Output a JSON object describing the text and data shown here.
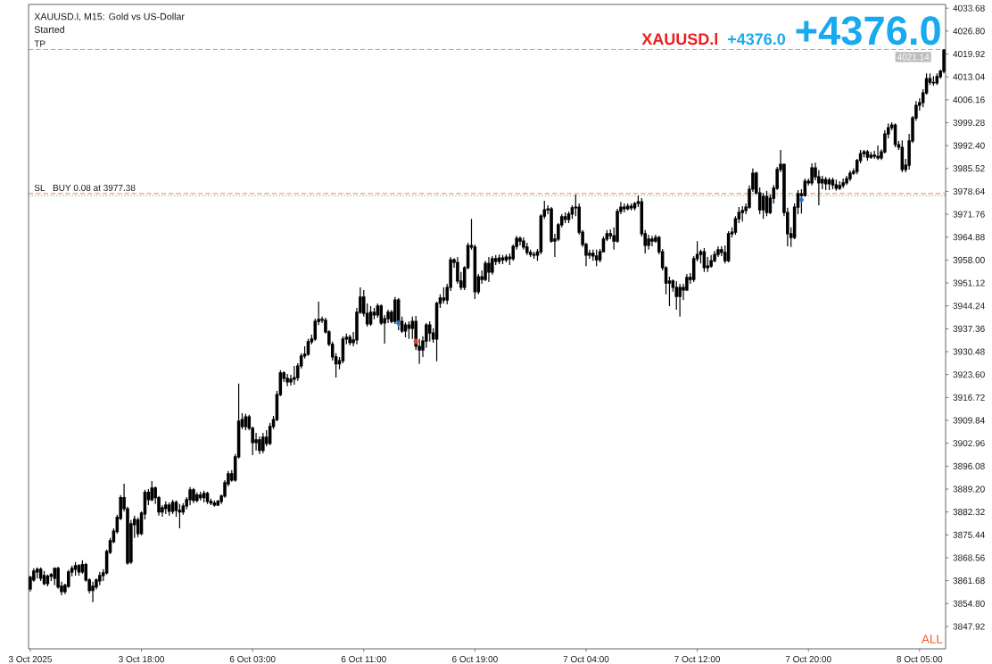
{
  "chart_data": {
    "type": "candlestick",
    "title": "XAUUSD.l, M15: Gold vs US-Dollar",
    "color": "#000000",
    "categories": [
      "3 Oct 2025",
      null,
      null,
      null,
      null,
      null,
      null,
      null,
      null,
      null,
      null,
      null,
      null,
      null,
      null,
      null,
      null,
      null,
      null,
      null,
      null,
      null,
      null,
      null,
      null,
      null,
      null,
      null,
      null,
      null,
      null,
      null,
      "3 Oct 18:00",
      null,
      null,
      null,
      null,
      null,
      null,
      null,
      null,
      null,
      null,
      null,
      null,
      null,
      null,
      null,
      null,
      null,
      null,
      null,
      null,
      null,
      null,
      null,
      null,
      null,
      null,
      null,
      null,
      null,
      null,
      null,
      "6 Oct 03:00",
      null,
      null,
      null,
      null,
      null,
      null,
      null,
      null,
      null,
      null,
      null,
      null,
      null,
      null,
      null,
      null,
      null,
      null,
      null,
      null,
      null,
      null,
      null,
      null,
      null,
      null,
      null,
      null,
      null,
      null,
      null,
      "6 Oct 11:00",
      null,
      null,
      null,
      null,
      null,
      null,
      null,
      null,
      null,
      null,
      null,
      null,
      null,
      null,
      null,
      null,
      null,
      null,
      null,
      null,
      null,
      null,
      null,
      null,
      null,
      null,
      null,
      null,
      null,
      null,
      null,
      "6 Oct 19:00",
      null,
      null,
      null,
      null,
      null,
      null,
      null,
      null,
      null,
      null,
      null,
      null,
      null,
      null,
      null,
      null,
      null,
      null,
      null,
      null,
      null,
      null,
      null,
      null,
      null,
      null,
      null,
      null,
      null,
      null,
      null,
      "7 Oct 04:00",
      null,
      null,
      null,
      null,
      null,
      null,
      null,
      null,
      null,
      null,
      null,
      null,
      null,
      null,
      null,
      null,
      null,
      null,
      null,
      null,
      null,
      null,
      null,
      null,
      null,
      null,
      null,
      null,
      null,
      null,
      null,
      "7 Oct 12:00",
      null,
      null,
      null,
      null,
      null,
      null,
      null,
      null,
      null,
      null,
      null,
      null,
      null,
      null,
      null,
      null,
      null,
      null,
      null,
      null,
      null,
      null,
      null,
      null,
      null,
      null,
      null,
      null,
      null,
      null,
      null,
      "7 Oct 20:00",
      null,
      null,
      null,
      null,
      null,
      null,
      null,
      null,
      null,
      null,
      null,
      null,
      null,
      null,
      null,
      null,
      null,
      null,
      null,
      null,
      null,
      null,
      null,
      null,
      null,
      null,
      null,
      null,
      null,
      null,
      null,
      "8 Oct 05:00",
      null,
      null,
      null,
      null,
      null,
      null,
      null
    ],
    "ohlc": [
      [
        3859.2,
        3863.2,
        3858.4,
        3862.7
      ],
      [
        3861.9,
        3865.4,
        3861.4,
        3864.6
      ],
      [
        3864.3,
        3865.7,
        3862.4,
        3865.1
      ],
      [
        3865.1,
        3865.7,
        3861.6,
        3862.4
      ],
      [
        3863.2,
        3864.6,
        3860.3,
        3860.8
      ],
      [
        3860.8,
        3863.5,
        3860.0,
        3863.0
      ],
      [
        3863.0,
        3864.0,
        3861.6,
        3863.5
      ],
      [
        3862.4,
        3865.7,
        3860.3,
        3865.4
      ],
      [
        3865.4,
        3865.9,
        3859.2,
        3859.8
      ],
      [
        3860.0,
        3861.4,
        3857.3,
        3858.4
      ],
      [
        3858.4,
        3860.8,
        3857.6,
        3860.3
      ],
      [
        3860.0,
        3864.9,
        3859.5,
        3864.3
      ],
      [
        3864.3,
        3866.2,
        3863.0,
        3865.4
      ],
      [
        3865.1,
        3867.3,
        3863.2,
        3866.2
      ],
      [
        3866.2,
        3866.7,
        3863.2,
        3864.3
      ],
      [
        3864.3,
        3867.8,
        3863.8,
        3866.5
      ],
      [
        3866.5,
        3867.0,
        3861.4,
        3861.9
      ],
      [
        3861.9,
        3862.4,
        3857.9,
        3858.7
      ],
      [
        3858.7,
        3861.4,
        3855.2,
        3860.0
      ],
      [
        3859.8,
        3862.4,
        3859.0,
        3861.9
      ],
      [
        3861.6,
        3864.3,
        3860.3,
        3863.2
      ],
      [
        3863.2,
        3865.1,
        3861.6,
        3864.0
      ],
      [
        3864.0,
        3871.0,
        3863.5,
        3870.5
      ],
      [
        3870.2,
        3874.5,
        3869.7,
        3873.7
      ],
      [
        3873.4,
        3877.4,
        3872.9,
        3876.6
      ],
      [
        3876.4,
        3881.5,
        3875.8,
        3880.7
      ],
      [
        3880.4,
        3887.4,
        3879.9,
        3886.6
      ],
      [
        3886.6,
        3890.8,
        3882.5,
        3883.3
      ],
      [
        3883.3,
        3883.9,
        3866.5,
        3867.0
      ],
      [
        3867.3,
        3879.9,
        3866.7,
        3878.8
      ],
      [
        3878.5,
        3881.2,
        3874.5,
        3880.1
      ],
      [
        3879.9,
        3880.7,
        3874.8,
        3875.8
      ],
      [
        3875.8,
        3882.5,
        3875.3,
        3882.0
      ],
      [
        3881.7,
        3889.0,
        3880.1,
        3888.2
      ],
      [
        3888.2,
        3889.2,
        3884.4,
        3886.0
      ],
      [
        3886.0,
        3891.6,
        3885.5,
        3889.5
      ],
      [
        3889.5,
        3890.0,
        3884.7,
        3886.6
      ],
      [
        3886.6,
        3887.1,
        3881.2,
        3882.3
      ],
      [
        3882.3,
        3884.4,
        3880.9,
        3883.6
      ],
      [
        3883.3,
        3885.5,
        3881.7,
        3884.4
      ],
      [
        3884.4,
        3885.2,
        3881.2,
        3882.5
      ],
      [
        3882.5,
        3886.0,
        3881.7,
        3885.2
      ],
      [
        3885.2,
        3885.8,
        3880.9,
        3882.8
      ],
      [
        3882.8,
        3884.7,
        3877.4,
        3882.3
      ],
      [
        3882.3,
        3885.0,
        3881.5,
        3884.1
      ],
      [
        3884.1,
        3886.8,
        3883.1,
        3886.0
      ],
      [
        3886.0,
        3889.8,
        3884.4,
        3889.0
      ],
      [
        3889.0,
        3889.5,
        3885.0,
        3885.8
      ],
      [
        3885.8,
        3888.2,
        3885.2,
        3887.4
      ],
      [
        3887.4,
        3888.4,
        3885.8,
        3886.6
      ],
      [
        3886.6,
        3888.7,
        3885.2,
        3887.9
      ],
      [
        3887.9,
        3888.4,
        3884.7,
        3885.5
      ],
      [
        3885.5,
        3886.3,
        3884.4,
        3885.0
      ],
      [
        3885.0,
        3885.8,
        3883.9,
        3884.4
      ],
      [
        3884.4,
        3886.0,
        3884.1,
        3885.5
      ],
      [
        3885.5,
        3887.6,
        3884.7,
        3887.1
      ],
      [
        3887.1,
        3891.9,
        3886.6,
        3891.1
      ],
      [
        3890.8,
        3894.6,
        3890.0,
        3893.8
      ],
      [
        3893.8,
        3894.9,
        3891.4,
        3891.9
      ],
      [
        3891.9,
        3899.7,
        3891.4,
        3898.9
      ],
      [
        3898.9,
        3920.9,
        3898.4,
        3909.6
      ],
      [
        3910.1,
        3912.0,
        3907.2,
        3908.0
      ],
      [
        3908.0,
        3911.8,
        3906.9,
        3910.9
      ],
      [
        3910.9,
        3911.5,
        3906.9,
        3907.5
      ],
      [
        3907.5,
        3908.0,
        3899.4,
        3903.2
      ],
      [
        3903.2,
        3906.1,
        3900.8,
        3904.0
      ],
      [
        3904.0,
        3905.0,
        3899.7,
        3900.8
      ],
      [
        3900.8,
        3906.1,
        3900.0,
        3904.8
      ],
      [
        3904.8,
        3906.9,
        3902.1,
        3902.9
      ],
      [
        3902.9,
        3909.1,
        3902.4,
        3908.0
      ],
      [
        3908.0,
        3911.2,
        3907.2,
        3910.1
      ],
      [
        3910.1,
        3918.7,
        3909.6,
        3917.6
      ],
      [
        3917.6,
        3924.9,
        3917.1,
        3924.1
      ],
      [
        3924.1,
        3924.6,
        3921.4,
        3922.5
      ],
      [
        3922.5,
        3923.8,
        3920.1,
        3921.4
      ],
      [
        3921.4,
        3923.5,
        3920.3,
        3922.2
      ],
      [
        3922.2,
        3926.2,
        3920.6,
        3922.7
      ],
      [
        3922.7,
        3927.0,
        3921.7,
        3926.2
      ],
      [
        3926.2,
        3930.0,
        3925.4,
        3929.2
      ],
      [
        3929.2,
        3932.1,
        3928.4,
        3929.7
      ],
      [
        3929.7,
        3934.3,
        3929.2,
        3933.5
      ],
      [
        3933.5,
        3935.6,
        3932.7,
        3934.3
      ],
      [
        3934.3,
        3940.4,
        3933.7,
        3939.6
      ],
      [
        3939.6,
        3945.5,
        3938.5,
        3940.2
      ],
      [
        3940.2,
        3941.0,
        3939.1,
        3939.9
      ],
      [
        3939.9,
        3940.7,
        3935.9,
        3936.4
      ],
      [
        3936.4,
        3936.9,
        3932.1,
        3932.7
      ],
      [
        3932.7,
        3933.5,
        3927.8,
        3928.9
      ],
      [
        3928.9,
        3930.0,
        3922.7,
        3926.8
      ],
      [
        3926.8,
        3928.9,
        3925.2,
        3927.8
      ],
      [
        3927.8,
        3935.1,
        3927.0,
        3934.3
      ],
      [
        3934.3,
        3935.9,
        3932.7,
        3934.8
      ],
      [
        3934.8,
        3935.6,
        3932.4,
        3933.2
      ],
      [
        3933.2,
        3936.4,
        3932.1,
        3934.0
      ],
      [
        3934.0,
        3943.6,
        3932.7,
        3942.3
      ],
      [
        3942.3,
        3949.8,
        3941.8,
        3946.9
      ],
      [
        3946.9,
        3949.0,
        3941.0,
        3942.0
      ],
      [
        3942.0,
        3945.0,
        3938.0,
        3938.8
      ],
      [
        3938.8,
        3944.2,
        3938.3,
        3942.3
      ],
      [
        3942.3,
        3943.6,
        3940.2,
        3941.5
      ],
      [
        3941.5,
        3945.0,
        3940.7,
        3944.2
      ],
      [
        3944.2,
        3944.7,
        3938.5,
        3939.1
      ],
      [
        3939.1,
        3941.5,
        3932.9,
        3940.4
      ],
      [
        3940.4,
        3943.1,
        3939.1,
        3942.3
      ],
      [
        3942.3,
        3943.0,
        3939.0,
        3939.6
      ],
      [
        3939.6,
        3946.9,
        3938.8,
        3946.0
      ],
      [
        3946.0,
        3946.6,
        3936.9,
        3939.6
      ],
      [
        3939.6,
        3941.0,
        3936.1,
        3936.7
      ],
      [
        3936.7,
        3939.3,
        3934.8,
        3938.5
      ],
      [
        3938.5,
        3939.6,
        3934.3,
        3937.5
      ],
      [
        3937.5,
        3941.0,
        3934.3,
        3939.6
      ],
      [
        3939.6,
        3941.2,
        3931.0,
        3932.1
      ],
      [
        3932.1,
        3934.3,
        3926.8,
        3931.0
      ],
      [
        3931.0,
        3935.1,
        3928.9,
        3933.7
      ],
      [
        3933.7,
        3939.1,
        3931.6,
        3938.5
      ],
      [
        3938.5,
        3939.6,
        3933.5,
        3936.1
      ],
      [
        3936.1,
        3937.5,
        3933.2,
        3934.3
      ],
      [
        3934.3,
        3945.5,
        3927.6,
        3945.0
      ],
      [
        3945.0,
        3947.7,
        3943.6,
        3946.6
      ],
      [
        3946.6,
        3949.8,
        3945.0,
        3946.0
      ],
      [
        3946.0,
        3950.9,
        3944.7,
        3949.8
      ],
      [
        3949.8,
        3958.9,
        3948.7,
        3958.1
      ],
      [
        3958.1,
        3958.6,
        3955.7,
        3957.3
      ],
      [
        3957.3,
        3958.9,
        3950.9,
        3951.7
      ],
      [
        3951.7,
        3954.4,
        3949.0,
        3949.8
      ],
      [
        3949.8,
        3956.2,
        3949.0,
        3955.7
      ],
      [
        3955.7,
        3963.2,
        3955.2,
        3962.4
      ],
      [
        3962.4,
        3970.4,
        3961.1,
        3961.9
      ],
      [
        3961.9,
        3962.7,
        3946.3,
        3948.5
      ],
      [
        3948.5,
        3953.8,
        3947.7,
        3953.0
      ],
      [
        3953.0,
        3954.9,
        3950.9,
        3952.2
      ],
      [
        3952.2,
        3957.8,
        3951.7,
        3957.0
      ],
      [
        3957.0,
        3958.9,
        3951.4,
        3954.4
      ],
      [
        3954.4,
        3959.2,
        3953.6,
        3958.4
      ],
      [
        3958.4,
        3959.5,
        3956.5,
        3957.6
      ],
      [
        3957.6,
        3959.7,
        3956.8,
        3958.6
      ],
      [
        3958.6,
        3959.5,
        3956.8,
        3958.1
      ],
      [
        3958.1,
        3959.7,
        3957.3,
        3958.9
      ],
      [
        3958.9,
        3960.0,
        3956.5,
        3958.4
      ],
      [
        3958.4,
        3962.7,
        3957.8,
        3962.1
      ],
      [
        3962.1,
        3965.3,
        3961.1,
        3964.5
      ],
      [
        3964.5,
        3965.1,
        3962.4,
        3963.7
      ],
      [
        3963.7,
        3964.8,
        3961.1,
        3961.9
      ],
      [
        3961.9,
        3963.2,
        3959.5,
        3960.3
      ],
      [
        3960.3,
        3961.1,
        3958.9,
        3959.7
      ],
      [
        3959.7,
        3960.5,
        3958.4,
        3959.5
      ],
      [
        3959.5,
        3961.3,
        3957.8,
        3960.5
      ],
      [
        3960.5,
        3971.8,
        3959.7,
        3971.2
      ],
      [
        3971.2,
        3975.8,
        3970.4,
        3973.1
      ],
      [
        3973.1,
        3974.5,
        3971.8,
        3973.4
      ],
      [
        3973.4,
        3973.9,
        3963.2,
        3963.7
      ],
      [
        3963.7,
        3965.9,
        3958.9,
        3964.3
      ],
      [
        3964.3,
        3969.1,
        3963.7,
        3968.6
      ],
      [
        3968.6,
        3971.8,
        3967.8,
        3971.0
      ],
      [
        3971.0,
        3972.3,
        3969.1,
        3970.2
      ],
      [
        3970.2,
        3972.6,
        3969.1,
        3971.8
      ],
      [
        3971.8,
        3974.5,
        3970.4,
        3973.7
      ],
      [
        3973.7,
        3977.7,
        3971.2,
        3973.9
      ],
      [
        3973.9,
        3975.0,
        3965.6,
        3966.4
      ],
      [
        3966.4,
        3967.0,
        3961.9,
        3962.7
      ],
      [
        3962.7,
        3963.2,
        3956.2,
        3959.5
      ],
      [
        3959.5,
        3961.1,
        3958.4,
        3960.0
      ],
      [
        3960.0,
        3961.1,
        3957.8,
        3959.2
      ],
      [
        3959.2,
        3961.1,
        3956.2,
        3958.1
      ],
      [
        3958.1,
        3961.3,
        3957.3,
        3960.5
      ],
      [
        3960.5,
        3965.1,
        3960.3,
        3964.3
      ],
      [
        3964.3,
        3967.0,
        3963.7,
        3965.9
      ],
      [
        3965.9,
        3967.2,
        3964.3,
        3965.3
      ],
      [
        3965.3,
        3967.8,
        3961.1,
        3963.7
      ],
      [
        3963.7,
        3973.4,
        3963.2,
        3972.6
      ],
      [
        3972.6,
        3975.5,
        3971.8,
        3973.9
      ],
      [
        3973.9,
        3975.0,
        3972.3,
        3973.4
      ],
      [
        3973.4,
        3975.0,
        3972.9,
        3974.2
      ],
      [
        3974.2,
        3975.0,
        3972.9,
        3973.7
      ],
      [
        3973.7,
        3975.5,
        3972.9,
        3975.0
      ],
      [
        3975.0,
        3977.4,
        3973.9,
        3975.5
      ],
      [
        3975.5,
        3976.6,
        3965.1,
        3965.9
      ],
      [
        3965.9,
        3967.0,
        3960.0,
        3962.4
      ],
      [
        3962.4,
        3965.6,
        3961.1,
        3964.3
      ],
      [
        3964.3,
        3965.3,
        3962.1,
        3963.7
      ],
      [
        3963.7,
        3965.6,
        3963.2,
        3964.8
      ],
      [
        3964.8,
        3965.3,
        3959.7,
        3960.5
      ],
      [
        3960.5,
        3961.3,
        3954.9,
        3955.7
      ],
      [
        3955.7,
        3956.2,
        3947.7,
        3951.1
      ],
      [
        3951.1,
        3953.0,
        3944.2,
        3951.7
      ],
      [
        3951.7,
        3952.2,
        3948.5,
        3949.8
      ],
      [
        3949.8,
        3951.7,
        3943.1,
        3947.1
      ],
      [
        3947.1,
        3950.9,
        3941.0,
        3949.8
      ],
      [
        3949.8,
        3950.9,
        3946.0,
        3949.0
      ],
      [
        3949.0,
        3953.8,
        3948.7,
        3952.8
      ],
      [
        3952.8,
        3954.1,
        3950.9,
        3952.2
      ],
      [
        3952.2,
        3959.2,
        3951.4,
        3958.4
      ],
      [
        3958.4,
        3963.7,
        3957.6,
        3959.7
      ],
      [
        3959.7,
        3961.1,
        3957.0,
        3960.5
      ],
      [
        3960.5,
        3961.6,
        3954.4,
        3955.7
      ],
      [
        3955.7,
        3958.9,
        3954.4,
        3956.2
      ],
      [
        3956.2,
        3959.5,
        3955.7,
        3957.8
      ],
      [
        3957.8,
        3960.8,
        3957.3,
        3959.7
      ],
      [
        3959.7,
        3962.1,
        3958.9,
        3961.1
      ],
      [
        3961.1,
        3962.1,
        3959.2,
        3960.3
      ],
      [
        3960.3,
        3962.4,
        3957.0,
        3957.8
      ],
      [
        3957.8,
        3966.7,
        3957.3,
        3965.9
      ],
      [
        3965.9,
        3967.8,
        3964.8,
        3966.4
      ],
      [
        3966.4,
        3971.2,
        3965.6,
        3970.4
      ],
      [
        3970.4,
        3973.9,
        3969.1,
        3972.3
      ],
      [
        3972.3,
        3974.2,
        3969.6,
        3972.9
      ],
      [
        3972.9,
        3975.0,
        3971.8,
        3973.9
      ],
      [
        3973.9,
        3980.4,
        3973.4,
        3979.3
      ],
      [
        3979.3,
        3985.5,
        3978.5,
        3984.1
      ],
      [
        3984.1,
        3984.6,
        3977.7,
        3978.2
      ],
      [
        3978.2,
        3979.8,
        3971.8,
        3973.1
      ],
      [
        3973.1,
        3978.2,
        3970.4,
        3977.1
      ],
      [
        3977.1,
        3978.8,
        3971.2,
        3972.3
      ],
      [
        3972.3,
        3977.7,
        3971.8,
        3976.6
      ],
      [
        3976.6,
        3980.6,
        3975.0,
        3979.6
      ],
      [
        3979.6,
        3986.0,
        3979.0,
        3985.2
      ],
      [
        3985.2,
        3991.1,
        3984.4,
        3986.8
      ],
      [
        3986.8,
        3987.0,
        3971.2,
        3972.3
      ],
      [
        3972.3,
        3973.7,
        3962.1,
        3965.9
      ],
      [
        3965.9,
        3967.8,
        3961.9,
        3964.8
      ],
      [
        3964.8,
        3975.0,
        3964.3,
        3973.9
      ],
      [
        3973.9,
        3979.0,
        3971.8,
        3977.9
      ],
      [
        3977.9,
        3979.3,
        3972.0,
        3977.4
      ],
      [
        3977.4,
        3982.5,
        3977.1,
        3981.7
      ],
      [
        3981.7,
        3982.5,
        3980.4,
        3981.2
      ],
      [
        3981.2,
        3987.1,
        3980.4,
        3985.7
      ],
      [
        3985.7,
        3987.3,
        3982.0,
        3983.0
      ],
      [
        3983.0,
        3985.0,
        3974.5,
        3981.2
      ],
      [
        3981.2,
        3983.3,
        3979.3,
        3982.2
      ],
      [
        3982.2,
        3983.0,
        3979.0,
        3980.9
      ],
      [
        3980.9,
        3982.8,
        3979.0,
        3982.0
      ],
      [
        3982.0,
        3982.8,
        3979.3,
        3980.6
      ],
      [
        3980.6,
        3982.2,
        3978.8,
        3979.6
      ],
      [
        3979.6,
        3981.7,
        3979.0,
        3980.4
      ],
      [
        3980.4,
        3982.5,
        3979.6,
        3981.2
      ],
      [
        3981.2,
        3983.3,
        3980.6,
        3982.5
      ],
      [
        3982.5,
        3984.9,
        3981.7,
        3984.1
      ],
      [
        3984.1,
        3985.5,
        3983.6,
        3984.6
      ],
      [
        3984.6,
        3988.4,
        3983.8,
        3987.9
      ],
      [
        3987.9,
        3991.1,
        3987.1,
        3990.0
      ],
      [
        3990.0,
        3991.1,
        3988.9,
        3990.5
      ],
      [
        3990.5,
        3991.1,
        3987.9,
        3988.9
      ],
      [
        3988.9,
        3990.5,
        3988.4,
        3989.5
      ],
      [
        3989.5,
        3990.8,
        3988.4,
        3989.2
      ],
      [
        3989.2,
        3992.4,
        3988.1,
        3988.7
      ],
      [
        3988.7,
        3991.3,
        3988.1,
        3990.5
      ],
      [
        3990.5,
        3997.0,
        3990.0,
        3995.9
      ],
      [
        3995.9,
        3999.1,
        3994.6,
        3997.8
      ],
      [
        3997.8,
        3999.4,
        3997.0,
        3998.6
      ],
      [
        3998.6,
        3999.1,
        3991.9,
        3992.7
      ],
      [
        3992.7,
        3993.8,
        3991.1,
        3991.9
      ],
      [
        3991.9,
        3994.0,
        3984.4,
        3985.2
      ],
      [
        3985.2,
        3988.4,
        3984.4,
        3986.5
      ],
      [
        3986.5,
        3995.9,
        3985.2,
        3993.8
      ],
      [
        3993.8,
        4001.3,
        3993.2,
        4000.7
      ],
      [
        4000.7,
        4005.8,
        3999.9,
        4004.5
      ],
      [
        4004.5,
        4006.6,
        4002.9,
        4005.3
      ],
      [
        4005.3,
        4009.3,
        4003.9,
        4008.2
      ],
      [
        4008.2,
        4014.1,
        4007.7,
        4012.5
      ],
      [
        4012.5,
        4014.1,
        4010.6,
        4011.4
      ],
      [
        4011.4,
        4013.3,
        4010.4,
        4011.2
      ],
      [
        4011.2,
        4014.1,
        4010.6,
        4013.1
      ],
      [
        4013.1,
        4015.2,
        4012.5,
        4014.7
      ],
      [
        4014.7,
        4021.4,
        4014.1,
        4021.1
      ]
    ],
    "series": [
      {
        "type": "scatter",
        "color": "#2a77c9",
        "marker": "diamond",
        "values": [
          null,
          null,
          null,
          null,
          null,
          null,
          null,
          null,
          null,
          null,
          null,
          null,
          null,
          null,
          null,
          null,
          null,
          null,
          null,
          null,
          null,
          null,
          null,
          null,
          null,
          null,
          null,
          null,
          null,
          null,
          null,
          null,
          null,
          null,
          null,
          null,
          null,
          null,
          null,
          null,
          null,
          null,
          null,
          null,
          null,
          null,
          null,
          null,
          null,
          null,
          null,
          null,
          null,
          null,
          null,
          null,
          null,
          null,
          null,
          null,
          null,
          null,
          null,
          null,
          null,
          null,
          null,
          null,
          null,
          null,
          null,
          null,
          null,
          null,
          null,
          null,
          null,
          null,
          null,
          null,
          null,
          null,
          null,
          null,
          null,
          null,
          null,
          null,
          null,
          null,
          null,
          null,
          null,
          null,
          null,
          null,
          null,
          null,
          null,
          null,
          null,
          null,
          null,
          null,
          null,
          null,
          3939.0,
          null,
          null,
          null,
          null,
          null,
          null,
          null,
          null,
          null,
          null,
          null,
          null,
          null,
          null,
          null,
          null,
          null,
          null,
          null,
          null,
          null,
          null,
          null,
          null,
          null,
          null,
          null,
          null,
          null,
          null,
          null,
          null,
          null,
          null,
          null,
          null,
          null,
          null,
          null,
          null,
          null,
          null,
          null,
          null,
          null,
          null,
          null,
          null,
          null,
          null,
          null,
          null,
          null,
          null,
          null,
          null,
          null,
          null,
          null,
          null,
          null,
          null,
          null,
          null,
          null,
          null,
          null,
          null,
          null,
          null,
          null,
          null,
          null,
          null,
          null,
          null,
          null,
          null,
          null,
          null,
          null,
          null,
          null,
          null,
          null,
          null,
          null,
          null,
          null,
          null,
          null,
          null,
          null,
          null,
          null,
          null,
          null,
          null,
          null,
          null,
          null,
          null,
          null,
          null,
          null,
          null,
          null,
          null,
          null,
          null,
          null,
          null,
          null,
          null,
          null,
          3976.1,
          null,
          null,
          null,
          null,
          null,
          null,
          null,
          null,
          null,
          null,
          null,
          null,
          null,
          null,
          null,
          null,
          null,
          null,
          null,
          null,
          null,
          null,
          null,
          null,
          null,
          null,
          null,
          null,
          null,
          null,
          null,
          null,
          null,
          null,
          null,
          null,
          null,
          null,
          null,
          null,
          null
        ]
      },
      {
        "type": "scatter",
        "color": "#e0442a",
        "marker": "diamond",
        "values": [
          null,
          null,
          null,
          null,
          null,
          null,
          null,
          null,
          null,
          null,
          null,
          null,
          null,
          null,
          null,
          null,
          null,
          null,
          null,
          null,
          null,
          null,
          null,
          null,
          null,
          null,
          null,
          null,
          null,
          null,
          null,
          null,
          null,
          null,
          null,
          null,
          null,
          null,
          null,
          null,
          null,
          null,
          null,
          null,
          null,
          null,
          null,
          null,
          null,
          null,
          null,
          null,
          null,
          null,
          null,
          null,
          null,
          null,
          null,
          null,
          null,
          null,
          null,
          null,
          null,
          null,
          null,
          null,
          null,
          null,
          null,
          null,
          null,
          null,
          null,
          null,
          null,
          null,
          null,
          null,
          null,
          null,
          null,
          null,
          null,
          null,
          null,
          null,
          null,
          null,
          null,
          null,
          null,
          null,
          null,
          null,
          null,
          null,
          null,
          null,
          null,
          null,
          null,
          null,
          null,
          null,
          null,
          null,
          null,
          null,
          null,
          3933.6,
          null,
          null,
          null,
          null,
          null,
          null,
          null,
          null,
          null,
          null,
          null,
          null,
          null,
          null,
          null,
          null,
          null,
          null,
          null,
          null,
          null,
          null,
          null,
          null,
          null,
          null,
          null,
          null,
          null,
          null,
          null,
          null,
          null,
          null,
          null,
          null,
          null,
          null,
          null,
          null,
          null,
          null,
          null,
          null,
          null,
          null,
          null,
          null,
          null,
          null,
          null,
          null,
          null,
          null,
          null,
          null,
          null,
          null,
          null,
          null,
          null,
          null,
          null,
          null,
          null,
          null,
          null,
          null,
          null,
          null,
          null,
          null,
          null,
          null,
          null,
          null,
          null,
          null,
          null,
          null,
          null,
          null,
          null,
          null,
          null,
          null,
          null,
          null,
          null,
          null,
          null,
          null,
          null,
          null,
          null,
          null,
          null,
          null,
          null,
          null,
          null,
          null,
          null,
          null,
          null,
          null,
          null,
          null,
          null,
          null,
          null,
          null,
          null,
          null,
          null,
          null,
          null,
          null,
          null,
          null,
          null,
          null,
          null,
          null,
          null,
          null,
          null,
          null,
          null,
          null,
          null,
          null,
          null,
          null,
          null,
          null,
          null,
          null,
          null,
          null,
          null,
          null,
          null,
          null,
          null,
          null,
          null,
          null,
          null,
          null,
          null,
          null
        ]
      }
    ],
    "ylim": [
      3841.2,
      4034.8
    ],
    "yticks": [
      3847.92,
      {
        "value": 3854.8,
        "label": "3854.80"
      },
      3861.68,
      3868.56,
      3875.44,
      3882.32,
      {
        "value": 3889.2,
        "label": "3889.20"
      },
      3896.08,
      3902.96,
      3909.84,
      3916.72,
      {
        "value": 3923.6,
        "label": "3923.60"
      },
      3930.48,
      3937.36,
      3944.24,
      3951.12,
      {
        "value": 3958,
        "label": "3958.00"
      },
      3964.88,
      3971.76,
      3978.64,
      3985.52,
      {
        "value": 3992.4,
        "label": "3992.40"
      },
      3999.28,
      4006.16,
      4013.04,
      4019.92,
      {
        "value": 4026.8,
        "label": "4026.80"
      },
      4033.68
    ],
    "ref_lines": [
      {
        "axis": "y",
        "value": 4021.3,
        "label": "TP",
        "color": "#e8603c",
        "line_style": "dashed"
      },
      {
        "axis": "y",
        "value": 3978.0,
        "label": "SL",
        "color": "#e8603c",
        "line_style": "dashed"
      },
      {
        "axis": "y",
        "value": 3977.38,
        "label": "BUY 0.08 at 3977.38",
        "color": "#3a9a3a",
        "line_style": "dotted"
      }
    ],
    "annotations": [
      "Started",
      "+4376.0",
      "XAUUSD.l",
      "+4376.0",
      "ALL",
      {
        "text": "4021.14",
        "y": 4021.14
      }
    ]
  }
}
